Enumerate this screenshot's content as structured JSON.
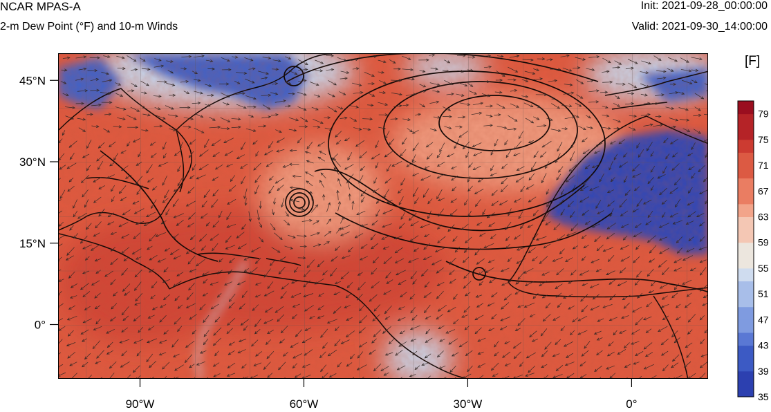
{
  "header": {
    "model": "NCAR MPAS-A",
    "field": "2-m Dew Point (°F) and 10-m Winds",
    "init": "Init: 2021-09-28_00:00:00",
    "valid": "Valid: 2021-09-30_14:00:00"
  },
  "map": {
    "projection": "cylindrical-equidistant",
    "lon_range": [
      -105,
      14
    ],
    "lat_range": [
      -10,
      50
    ],
    "lat_ticks": [
      {
        "value": 45,
        "label": "45°N"
      },
      {
        "value": 30,
        "label": "30°N"
      },
      {
        "value": 15,
        "label": "15°N"
      },
      {
        "value": 0,
        "label": "0°"
      }
    ],
    "lon_ticks": [
      {
        "value": -90,
        "label": "90°W"
      },
      {
        "value": -60,
        "label": "60°W"
      },
      {
        "value": -30,
        "label": "30°W"
      },
      {
        "value": 0,
        "label": "0°"
      }
    ],
    "colors": {
      "ocean_warm": "#e0593f",
      "ocean_moist": "#d24434",
      "mild": "#f09a7e",
      "cool": "#c9d4e8",
      "cold_land": "#3f62c8",
      "sahara": "#2e46b8",
      "coast": "#000000",
      "contour": "#000000",
      "wind": "#222222"
    }
  },
  "colorbar": {
    "units": "[F]",
    "min": 35,
    "max": 81,
    "step": 2,
    "labels": [
      "79",
      "75",
      "71",
      "67",
      "63",
      "59",
      "55",
      "51",
      "47",
      "43",
      "39",
      "35"
    ],
    "colors": [
      "#2c40b0",
      "#3c5ac4",
      "#5a78d4",
      "#7f9be0",
      "#a8bee9",
      "#cfdcef",
      "#ece6de",
      "#f4c7b4",
      "#f2a48a",
      "#ea7d62",
      "#dc5a43",
      "#cc3b31",
      "#b52327",
      "#9a0e1f"
    ]
  }
}
